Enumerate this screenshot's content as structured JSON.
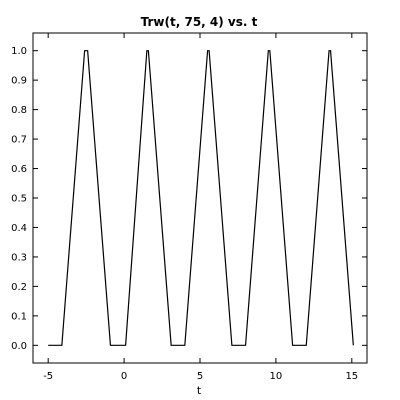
{
  "chart_data": {
    "type": "line",
    "title": "Trw(t, 75, 4) vs. t",
    "xlabel": "t",
    "ylabel": "",
    "xlim": [
      -6,
      16
    ],
    "ylim": [
      -0.06,
      1.06
    ],
    "xticks": [
      -5,
      0,
      5,
      10,
      15
    ],
    "xtick_labels": [
      "-5",
      "0",
      "5",
      "10",
      "15"
    ],
    "yticks": [
      0.0,
      0.1,
      0.2,
      0.3,
      0.4,
      0.5,
      0.6,
      0.7,
      0.8,
      0.9,
      1.0
    ],
    "ytick_labels": [
      "0.0",
      "0.1",
      "0.2",
      "0.3",
      "0.4",
      "0.5",
      "0.6",
      "0.7",
      "0.8",
      "0.9",
      "1.0"
    ],
    "grid": false,
    "line_color": "#000000",
    "series": [
      {
        "x": [
          -5,
          -4.1,
          -2.6,
          -2.4,
          -0.9,
          0,
          0.1,
          1.5,
          1.6,
          3.1,
          4,
          5.5,
          5.6,
          7.1,
          8,
          9.5,
          9.6,
          11.1,
          12,
          13.5,
          13.6,
          15.1
        ],
        "y": [
          0,
          0,
          1,
          1,
          0,
          0,
          0,
          1,
          1,
          0,
          0,
          1,
          1,
          0,
          0,
          1,
          1,
          0,
          0,
          1,
          1,
          0
        ]
      }
    ]
  }
}
